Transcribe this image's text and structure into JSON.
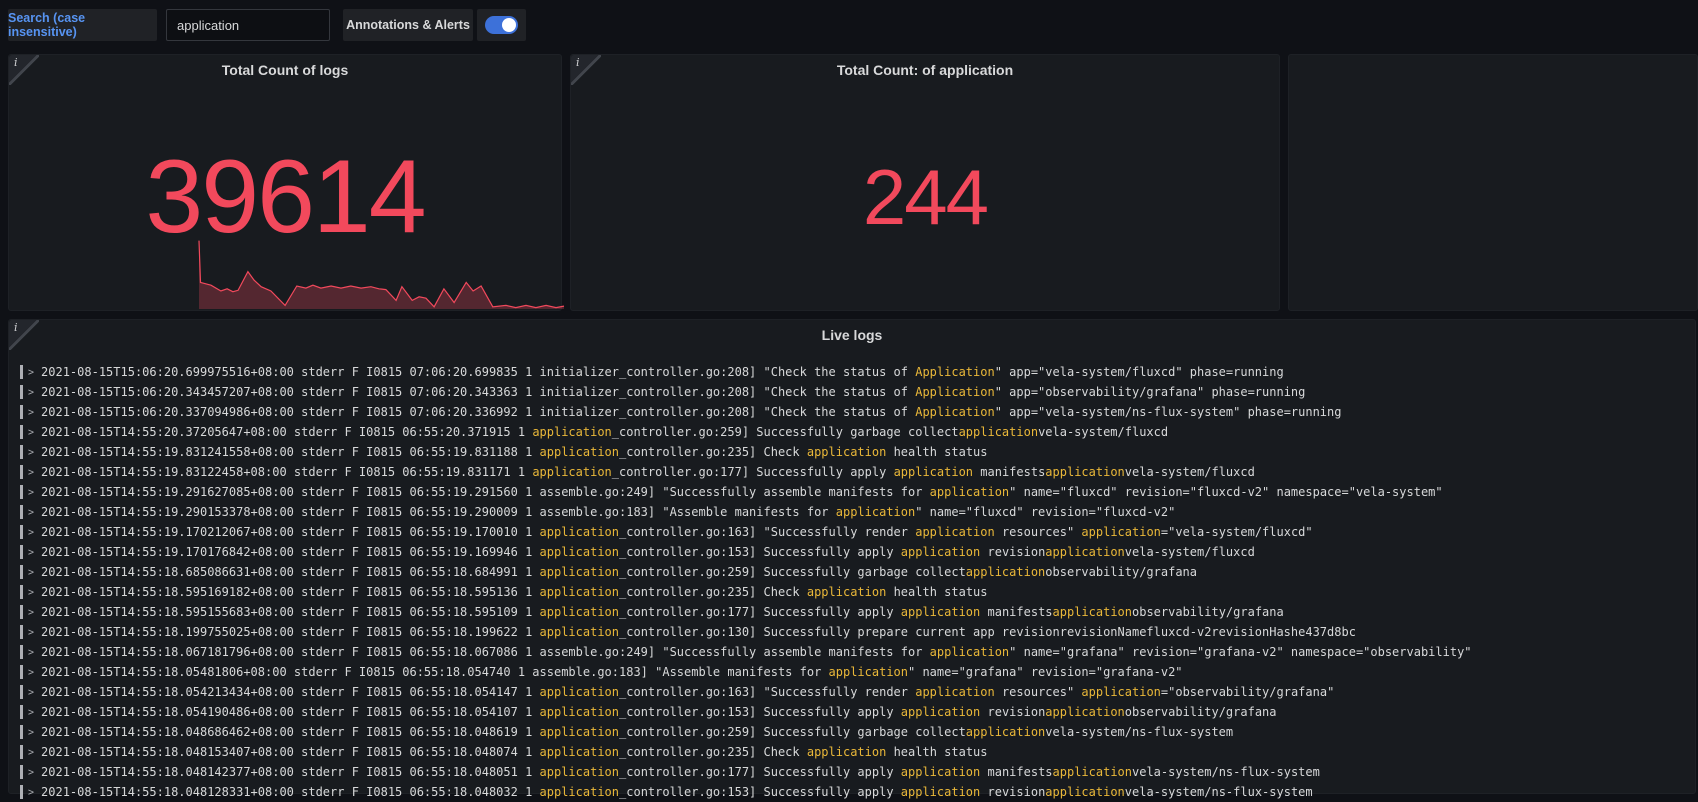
{
  "colors": {
    "accent_red": "#F2495C",
    "spark_fill": "rgba(242,73,92,0.28)",
    "highlight_yellow": "#EAB839",
    "link_blue": "#5794F2",
    "toggle_blue": "#3D71D9",
    "panel_bg": "#181b1f",
    "page_bg": "#0f1116"
  },
  "icons": {
    "panel_info": "i",
    "log_expand": ">"
  },
  "topbar": {
    "search_label": "Search (case insensitive)",
    "search_value": "application",
    "annotations_label": "Annotations & Alerts",
    "annotations_toggle_on": true
  },
  "panels": {
    "stat1": {
      "title": "Total Count of logs",
      "value": "39614"
    },
    "stat2": {
      "title": "Total Count: of application",
      "value": "244"
    },
    "stat3": {
      "title": ""
    },
    "logs_panel": {
      "title": "Live logs"
    }
  },
  "chart_data": [
    {
      "type": "area",
      "title": "Total Count of logs (stat sparkline)",
      "value": 39614,
      "points_norm": [
        [
          0.0,
          0.95
        ],
        [
          0.004,
          0.37
        ],
        [
          0.033,
          0.33
        ],
        [
          0.06,
          0.25
        ],
        [
          0.077,
          0.28
        ],
        [
          0.093,
          0.24
        ],
        [
          0.107,
          0.26
        ],
        [
          0.134,
          0.52
        ],
        [
          0.151,
          0.4
        ],
        [
          0.17,
          0.31
        ],
        [
          0.197,
          0.25
        ],
        [
          0.236,
          0.05
        ],
        [
          0.268,
          0.32
        ],
        [
          0.293,
          0.29
        ],
        [
          0.312,
          0.33
        ],
        [
          0.334,
          0.29
        ],
        [
          0.362,
          0.32
        ],
        [
          0.389,
          0.29
        ],
        [
          0.416,
          0.32
        ],
        [
          0.444,
          0.29
        ],
        [
          0.471,
          0.31
        ],
        [
          0.493,
          0.28
        ],
        [
          0.512,
          0.27
        ],
        [
          0.54,
          0.12
        ],
        [
          0.556,
          0.31
        ],
        [
          0.584,
          0.12
        ],
        [
          0.603,
          0.17
        ],
        [
          0.622,
          0.15
        ],
        [
          0.644,
          0.03
        ],
        [
          0.671,
          0.28
        ],
        [
          0.699,
          0.09
        ],
        [
          0.732,
          0.37
        ],
        [
          0.751,
          0.25
        ],
        [
          0.773,
          0.32
        ],
        [
          0.805,
          0.03
        ],
        [
          0.841,
          0.05
        ],
        [
          0.868,
          0.02
        ],
        [
          0.896,
          0.05
        ],
        [
          0.923,
          0.02
        ],
        [
          0.951,
          0.05
        ],
        [
          0.978,
          0.02
        ],
        [
          1.0,
          0.04
        ]
      ],
      "legend_position": "none",
      "grid": false
    },
    {
      "type": "stat",
      "title": "Total Count: of application",
      "value": 244
    }
  ],
  "logs": {
    "rows": [
      {
        "segments": [
          {
            "text": "2021-08-15T15:06:20.699975516+08:00 stderr F I0815 07:06:20.699835 1 initializer_controller.go:208] \"Check the status of ",
            "hl": false
          },
          {
            "text": "Application",
            "hl": true
          },
          {
            "text": "\" app=\"vela-system/fluxcd\" phase=running",
            "hl": false
          }
        ]
      },
      {
        "segments": [
          {
            "text": "2021-08-15T15:06:20.343457207+08:00 stderr F I0815 07:06:20.343363 1 initializer_controller.go:208] \"Check the status of ",
            "hl": false
          },
          {
            "text": "Application",
            "hl": true
          },
          {
            "text": "\" app=\"observability/grafana\" phase=running",
            "hl": false
          }
        ]
      },
      {
        "segments": [
          {
            "text": "2021-08-15T15:06:20.337094986+08:00 stderr F I0815 07:06:20.336992 1 initializer_controller.go:208] \"Check the status of ",
            "hl": false
          },
          {
            "text": "Application",
            "hl": true
          },
          {
            "text": "\" app=\"vela-system/ns-flux-system\" phase=running",
            "hl": false
          }
        ]
      },
      {
        "segments": [
          {
            "text": "2021-08-15T14:55:20.37205647+08:00 stderr F I0815 06:55:20.371915 1 ",
            "hl": false
          },
          {
            "text": "application",
            "hl": true
          },
          {
            "text": "_controller.go:259] Successfully garbage collect",
            "hl": false
          },
          {
            "text": "application",
            "hl": true
          },
          {
            "text": "vela-system/fluxcd",
            "hl": false
          }
        ]
      },
      {
        "segments": [
          {
            "text": "2021-08-15T14:55:19.831241558+08:00 stderr F I0815 06:55:19.831188 1 ",
            "hl": false
          },
          {
            "text": "application",
            "hl": true
          },
          {
            "text": "_controller.go:235] Check ",
            "hl": false
          },
          {
            "text": "application",
            "hl": true
          },
          {
            "text": " health status",
            "hl": false
          }
        ]
      },
      {
        "segments": [
          {
            "text": "2021-08-15T14:55:19.83122458+08:00 stderr F I0815 06:55:19.831171 1 ",
            "hl": false
          },
          {
            "text": "application",
            "hl": true
          },
          {
            "text": "_controller.go:177] Successfully apply ",
            "hl": false
          },
          {
            "text": "application",
            "hl": true
          },
          {
            "text": " manifests",
            "hl": false
          },
          {
            "text": "application",
            "hl": true
          },
          {
            "text": "vela-system/fluxcd",
            "hl": false
          }
        ]
      },
      {
        "segments": [
          {
            "text": "2021-08-15T14:55:19.291627085+08:00 stderr F I0815 06:55:19.291560 1 assemble.go:249] \"Successfully assemble manifests for ",
            "hl": false
          },
          {
            "text": "application",
            "hl": true
          },
          {
            "text": "\" name=\"fluxcd\" revision=\"fluxcd-v2\" namespace=\"vela-system\"",
            "hl": false
          }
        ]
      },
      {
        "segments": [
          {
            "text": "2021-08-15T14:55:19.290153378+08:00 stderr F I0815 06:55:19.290009 1 assemble.go:183] \"Assemble manifests for ",
            "hl": false
          },
          {
            "text": "application",
            "hl": true
          },
          {
            "text": "\" name=\"fluxcd\" revision=\"fluxcd-v2\"",
            "hl": false
          }
        ]
      },
      {
        "segments": [
          {
            "text": "2021-08-15T14:55:19.170212067+08:00 stderr F I0815 06:55:19.170010 1 ",
            "hl": false
          },
          {
            "text": "application",
            "hl": true
          },
          {
            "text": "_controller.go:163] \"Successfully render ",
            "hl": false
          },
          {
            "text": "application",
            "hl": true
          },
          {
            "text": " resources\" ",
            "hl": false
          },
          {
            "text": "application",
            "hl": true
          },
          {
            "text": "=\"vela-system/fluxcd\"",
            "hl": false
          }
        ]
      },
      {
        "segments": [
          {
            "text": "2021-08-15T14:55:19.170176842+08:00 stderr F I0815 06:55:19.169946 1 ",
            "hl": false
          },
          {
            "text": "application",
            "hl": true
          },
          {
            "text": "_controller.go:153] Successfully apply ",
            "hl": false
          },
          {
            "text": "application",
            "hl": true
          },
          {
            "text": " revision",
            "hl": false
          },
          {
            "text": "application",
            "hl": true
          },
          {
            "text": "vela-system/fluxcd",
            "hl": false
          }
        ]
      },
      {
        "segments": [
          {
            "text": "2021-08-15T14:55:18.685086631+08:00 stderr F I0815 06:55:18.684991 1 ",
            "hl": false
          },
          {
            "text": "application",
            "hl": true
          },
          {
            "text": "_controller.go:259] Successfully garbage collect",
            "hl": false
          },
          {
            "text": "application",
            "hl": true
          },
          {
            "text": "observability/grafana",
            "hl": false
          }
        ]
      },
      {
        "segments": [
          {
            "text": "2021-08-15T14:55:18.595169182+08:00 stderr F I0815 06:55:18.595136 1 ",
            "hl": false
          },
          {
            "text": "application",
            "hl": true
          },
          {
            "text": "_controller.go:235] Check ",
            "hl": false
          },
          {
            "text": "application",
            "hl": true
          },
          {
            "text": " health status",
            "hl": false
          }
        ]
      },
      {
        "segments": [
          {
            "text": "2021-08-15T14:55:18.595155683+08:00 stderr F I0815 06:55:18.595109 1 ",
            "hl": false
          },
          {
            "text": "application",
            "hl": true
          },
          {
            "text": "_controller.go:177] Successfully apply ",
            "hl": false
          },
          {
            "text": "application",
            "hl": true
          },
          {
            "text": " manifests",
            "hl": false
          },
          {
            "text": "application",
            "hl": true
          },
          {
            "text": "observability/grafana",
            "hl": false
          }
        ]
      },
      {
        "segments": [
          {
            "text": "2021-08-15T14:55:18.199755025+08:00 stderr F I0815 06:55:18.199622 1 ",
            "hl": false
          },
          {
            "text": "application",
            "hl": true
          },
          {
            "text": "_controller.go:130] Successfully prepare current app revisionrevisionNamefluxcd-v2revisionHashe437d8bc",
            "hl": false
          }
        ]
      },
      {
        "segments": [
          {
            "text": "2021-08-15T14:55:18.067181796+08:00 stderr F I0815 06:55:18.067086 1 assemble.go:249] \"Successfully assemble manifests for ",
            "hl": false
          },
          {
            "text": "application",
            "hl": true
          },
          {
            "text": "\" name=\"grafana\" revision=\"grafana-v2\" namespace=\"observability\"",
            "hl": false
          }
        ]
      },
      {
        "segments": [
          {
            "text": "2021-08-15T14:55:18.05481806+08:00 stderr F I0815 06:55:18.054740 1 assemble.go:183] \"Assemble manifests for ",
            "hl": false
          },
          {
            "text": "application",
            "hl": true
          },
          {
            "text": "\" name=\"grafana\" revision=\"grafana-v2\"",
            "hl": false
          }
        ]
      },
      {
        "segments": [
          {
            "text": "2021-08-15T14:55:18.054213434+08:00 stderr F I0815 06:55:18.054147 1 ",
            "hl": false
          },
          {
            "text": "application",
            "hl": true
          },
          {
            "text": "_controller.go:163] \"Successfully render ",
            "hl": false
          },
          {
            "text": "application",
            "hl": true
          },
          {
            "text": " resources\" ",
            "hl": false
          },
          {
            "text": "application",
            "hl": true
          },
          {
            "text": "=\"observability/grafana\"",
            "hl": false
          }
        ]
      },
      {
        "segments": [
          {
            "text": "2021-08-15T14:55:18.054190486+08:00 stderr F I0815 06:55:18.054107 1 ",
            "hl": false
          },
          {
            "text": "application",
            "hl": true
          },
          {
            "text": "_controller.go:153] Successfully apply ",
            "hl": false
          },
          {
            "text": "application",
            "hl": true
          },
          {
            "text": " revision",
            "hl": false
          },
          {
            "text": "application",
            "hl": true
          },
          {
            "text": "observability/grafana",
            "hl": false
          }
        ]
      },
      {
        "segments": [
          {
            "text": "2021-08-15T14:55:18.048686462+08:00 stderr F I0815 06:55:18.048619 1 ",
            "hl": false
          },
          {
            "text": "application",
            "hl": true
          },
          {
            "text": "_controller.go:259] Successfully garbage collect",
            "hl": false
          },
          {
            "text": "application",
            "hl": true
          },
          {
            "text": "vela-system/ns-flux-system",
            "hl": false
          }
        ]
      },
      {
        "segments": [
          {
            "text": "2021-08-15T14:55:18.048153407+08:00 stderr F I0815 06:55:18.048074 1 ",
            "hl": false
          },
          {
            "text": "application",
            "hl": true
          },
          {
            "text": "_controller.go:235] Check ",
            "hl": false
          },
          {
            "text": "application",
            "hl": true
          },
          {
            "text": " health status",
            "hl": false
          }
        ]
      },
      {
        "segments": [
          {
            "text": "2021-08-15T14:55:18.048142377+08:00 stderr F I0815 06:55:18.048051 1 ",
            "hl": false
          },
          {
            "text": "application",
            "hl": true
          },
          {
            "text": "_controller.go:177] Successfully apply ",
            "hl": false
          },
          {
            "text": "application",
            "hl": true
          },
          {
            "text": " manifests",
            "hl": false
          },
          {
            "text": "application",
            "hl": true
          },
          {
            "text": "vela-system/ns-flux-system",
            "hl": false
          }
        ]
      },
      {
        "segments": [
          {
            "text": "2021-08-15T14:55:18.048128331+08:00 stderr F I0815 06:55:18.048032 1 ",
            "hl": false
          },
          {
            "text": "application",
            "hl": true
          },
          {
            "text": "_controller.go:153] Successfully apply ",
            "hl": false
          },
          {
            "text": "application",
            "hl": true
          },
          {
            "text": " revision",
            "hl": false
          },
          {
            "text": "application",
            "hl": true
          },
          {
            "text": "vela-system/ns-flux-system",
            "hl": false
          }
        ]
      }
    ]
  }
}
